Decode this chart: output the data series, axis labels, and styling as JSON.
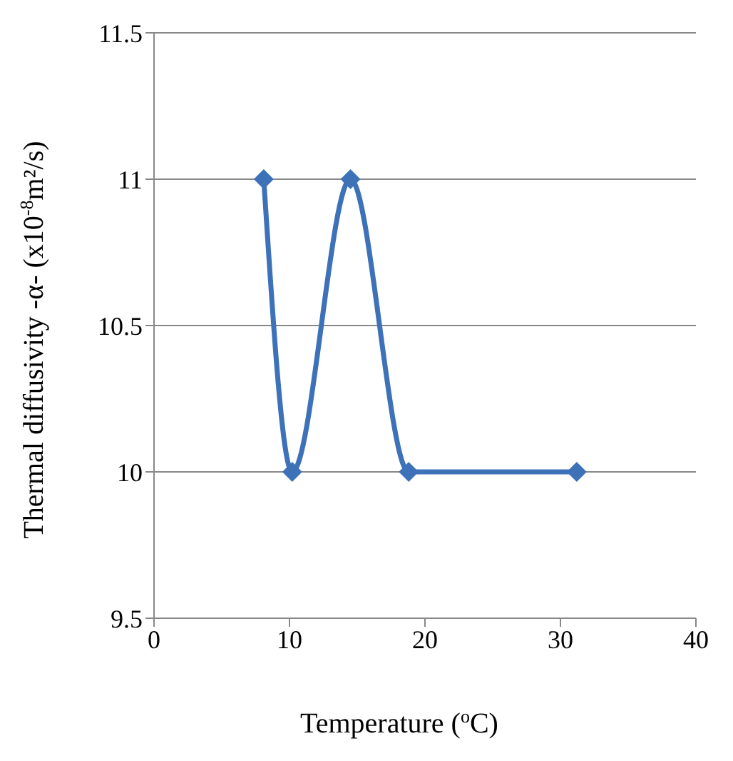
{
  "chart_data": {
    "type": "line",
    "xlabel": "Temperature ($^{o}$C)",
    "ylabel": "Thermal diffusivity -α- (x10$^{-8}$m²/s)",
    "x": [
      8.1,
      10.2,
      14.5,
      18.8,
      31.2
    ],
    "series": [
      {
        "color": "#3d72b9",
        "values": [
          11,
          10,
          11,
          10,
          10
        ]
      }
    ],
    "xlim": [
      0,
      40
    ],
    "xticks": [
      0,
      10,
      20,
      30,
      40
    ],
    "ylim": [
      9.5,
      11.5
    ],
    "yticks": [
      9.5,
      10,
      10.5,
      11,
      11.5
    ],
    "grid": "y",
    "legend": false,
    "marker": "diamond",
    "line_style": "solid"
  }
}
